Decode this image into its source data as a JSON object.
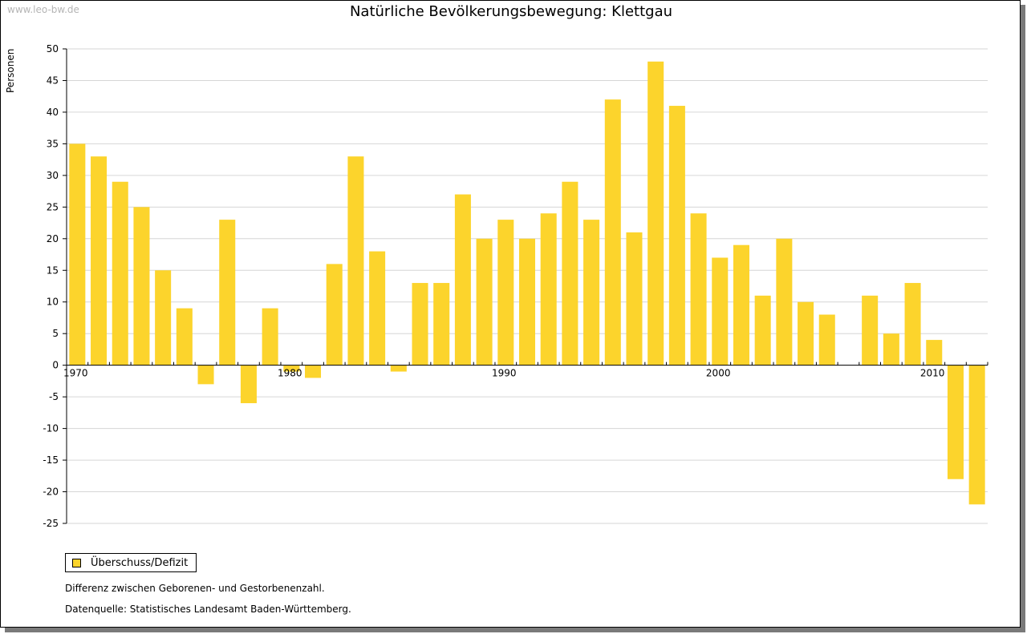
{
  "watermark": "www.leo-bw.de",
  "legend": {
    "label": "Überschuss/Defizit"
  },
  "notes": {
    "line1": "Differenz zwischen Geborenen- und Gestorbenenzahl.",
    "line2": "Datenquelle: Statistisches Landesamt Baden-Württemberg."
  },
  "chart_data": {
    "type": "bar",
    "title": "Natürliche Bevölkerungsbewegung: Klettgau",
    "xlabel": "",
    "ylabel": "Personen",
    "ylim": [
      -25,
      50
    ],
    "yticks": [
      50,
      45,
      40,
      35,
      30,
      25,
      20,
      15,
      10,
      5,
      0,
      -5,
      -10,
      -15,
      -20,
      -25
    ],
    "xticks": [
      1970,
      1980,
      1990,
      2000,
      2010
    ],
    "grid": true,
    "legend_position": "bottom-left",
    "bar_color": "#fcd42c",
    "x": [
      1970,
      1971,
      1972,
      1973,
      1974,
      1975,
      1976,
      1977,
      1978,
      1979,
      1980,
      1981,
      1982,
      1983,
      1984,
      1985,
      1986,
      1987,
      1988,
      1989,
      1990,
      1991,
      1992,
      1993,
      1994,
      1995,
      1996,
      1997,
      1998,
      1999,
      2000,
      2001,
      2002,
      2003,
      2004,
      2005,
      2006,
      2007,
      2008,
      2009,
      2010,
      2011,
      2012
    ],
    "series": [
      {
        "name": "Überschuss/Defizit",
        "values": [
          35,
          33,
          29,
          25,
          15,
          9,
          -3,
          23,
          -6,
          9,
          -1,
          -2,
          16,
          33,
          18,
          -1,
          13,
          13,
          27,
          20,
          23,
          20,
          24,
          29,
          23,
          42,
          21,
          48,
          41,
          24,
          17,
          19,
          11,
          20,
          10,
          8,
          0,
          11,
          5,
          13,
          4,
          -18,
          -22
        ]
      }
    ]
  }
}
